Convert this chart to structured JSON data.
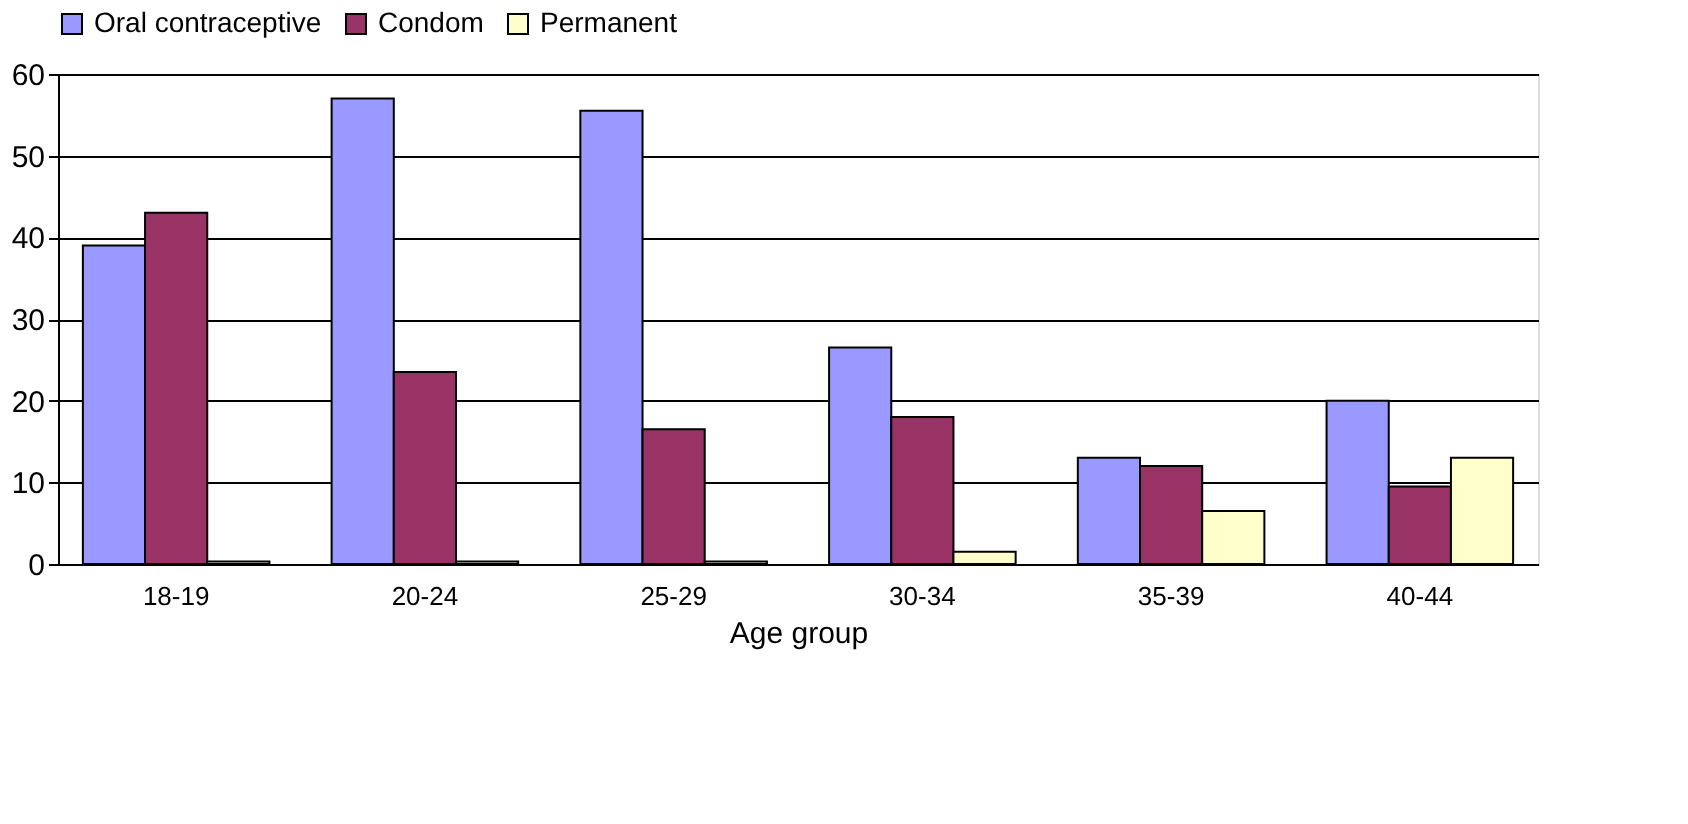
{
  "chart_data": {
    "type": "bar",
    "xlabel": "Age group",
    "categories": [
      "18-19",
      "20-24",
      "25-29",
      "30-34",
      "35-39",
      "40-44"
    ],
    "series": [
      {
        "name": "Oral contraceptive",
        "color": "#9999ff",
        "values": [
          39,
          57,
          55.5,
          26.5,
          13,
          20
        ]
      },
      {
        "name": "Condom",
        "color": "#993366",
        "values": [
          43,
          23.5,
          16.5,
          18,
          12,
          9.5
        ]
      },
      {
        "name": "Permanent",
        "color": "#ffffcc",
        "values": [
          0.3,
          0.3,
          0.3,
          1.5,
          6.5,
          13
        ]
      }
    ],
    "ylim": [
      0,
      60
    ],
    "yticks": [
      0,
      10,
      20,
      30,
      40,
      50,
      60
    ],
    "grid": "y",
    "legend": "top"
  }
}
